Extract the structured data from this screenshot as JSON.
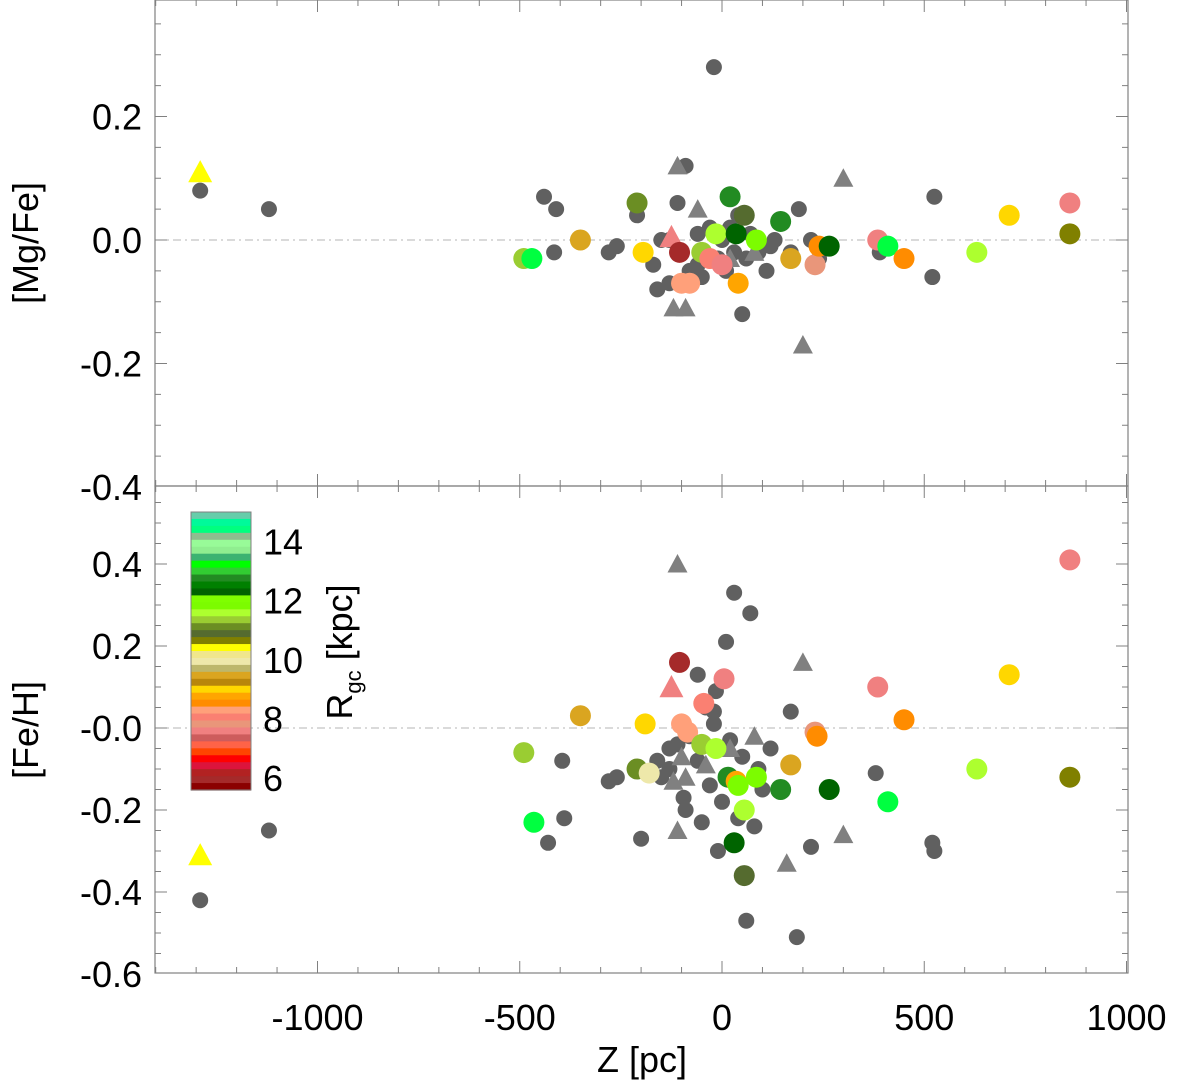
{
  "chart_data": [
    {
      "type": "scatter",
      "panel": "top",
      "ylabel": "[Mg/Fe]",
      "xlabel": "",
      "xlim": [
        -1400,
        1000
      ],
      "ylim": [
        -0.4,
        0.4
      ],
      "yticks": [
        0.2,
        0.0,
        -0.2,
        -0.4
      ],
      "ytick_labels": [
        "0.2",
        "0.0",
        "-0.2",
        "-0.4"
      ],
      "reference_line": 0.0,
      "gray_circles": [
        [
          -1290,
          0.08
        ],
        [
          -1120,
          0.05
        ],
        [
          -440,
          0.07
        ],
        [
          -410,
          0.05
        ],
        [
          -415,
          -0.02
        ],
        [
          -280,
          -0.02
        ],
        [
          -260,
          -0.01
        ],
        [
          -210,
          0.04
        ],
        [
          -170,
          -0.04
        ],
        [
          -150,
          0.0
        ],
        [
          -130,
          -0.07
        ],
        [
          -110,
          0.06
        ],
        [
          -100,
          -0.02
        ],
        [
          -90,
          0.12
        ],
        [
          -80,
          -0.05
        ],
        [
          -60,
          0.01
        ],
        [
          -50,
          -0.06
        ],
        [
          -40,
          -0.03
        ],
        [
          -30,
          0.02
        ],
        [
          -20,
          0.28
        ],
        [
          -10,
          -0.03
        ],
        [
          0,
          0.0
        ],
        [
          10,
          -0.05
        ],
        [
          20,
          0.02
        ],
        [
          30,
          -0.02
        ],
        [
          40,
          0.04
        ],
        [
          50,
          -0.12
        ],
        [
          60,
          -0.03
        ],
        [
          70,
          0.01
        ],
        [
          90,
          -0.02
        ],
        [
          110,
          -0.05
        ],
        [
          130,
          0.0
        ],
        [
          150,
          0.03
        ],
        [
          170,
          -0.02
        ],
        [
          190,
          0.05
        ],
        [
          220,
          0.0
        ],
        [
          240,
          -0.03
        ],
        [
          390,
          -0.02
        ],
        [
          520,
          -0.06
        ],
        [
          525,
          0.07
        ],
        [
          -160,
          -0.08
        ],
        [
          -60,
          -0.04
        ],
        [
          -130,
          0.0
        ],
        [
          120,
          -0.01
        ]
      ],
      "gray_triangles": [
        [
          -110,
          0.12
        ],
        [
          -60,
          0.05
        ],
        [
          -120,
          -0.11
        ],
        [
          -90,
          -0.11
        ],
        [
          200,
          -0.17
        ],
        [
          300,
          0.1
        ],
        [
          80,
          -0.02
        ],
        [
          20,
          -0.03
        ]
      ],
      "colored_points": [
        {
          "z": -1290,
          "v": 0.11,
          "color": "#ffff00",
          "shape": "triangle"
        },
        {
          "z": -125,
          "v": 0.005,
          "color": "#f08080",
          "shape": "triangle"
        },
        {
          "z": -490,
          "v": -0.03,
          "color": "#9acd32",
          "shape": "circle"
        },
        {
          "z": -470,
          "v": -0.03,
          "color": "#00ff40",
          "shape": "circle"
        },
        {
          "z": -350,
          "v": 0.0,
          "color": "#daa520",
          "shape": "circle"
        },
        {
          "z": -210,
          "v": 0.06,
          "color": "#6b8e23",
          "shape": "circle"
        },
        {
          "z": -195,
          "v": -0.02,
          "color": "#ffd700",
          "shape": "circle"
        },
        {
          "z": -105,
          "v": -0.02,
          "color": "#a52a2a",
          "shape": "circle"
        },
        {
          "z": -100,
          "v": -0.07,
          "color": "#ffa07a",
          "shape": "circle"
        },
        {
          "z": -80,
          "v": -0.07,
          "color": "#ffa07a",
          "shape": "circle"
        },
        {
          "z": -50,
          "v": -0.02,
          "color": "#9acd32",
          "shape": "circle"
        },
        {
          "z": -30,
          "v": -0.03,
          "color": "#fa8072",
          "shape": "circle"
        },
        {
          "z": -15,
          "v": 0.01,
          "color": "#adff2f",
          "shape": "circle"
        },
        {
          "z": 0,
          "v": -0.04,
          "color": "#f08080",
          "shape": "circle"
        },
        {
          "z": 20,
          "v": 0.07,
          "color": "#228b22",
          "shape": "circle"
        },
        {
          "z": 35,
          "v": 0.01,
          "color": "#006400",
          "shape": "circle"
        },
        {
          "z": 40,
          "v": -0.07,
          "color": "#ffa500",
          "shape": "circle"
        },
        {
          "z": 55,
          "v": 0.04,
          "color": "#556b2f",
          "shape": "circle"
        },
        {
          "z": 85,
          "v": 0.0,
          "color": "#7cfc00",
          "shape": "circle"
        },
        {
          "z": 145,
          "v": 0.03,
          "color": "#228b22",
          "shape": "circle"
        },
        {
          "z": 170,
          "v": -0.03,
          "color": "#daa520",
          "shape": "circle"
        },
        {
          "z": 230,
          "v": -0.04,
          "color": "#e9967a",
          "shape": "circle"
        },
        {
          "z": 240,
          "v": -0.01,
          "color": "#ff8c00",
          "shape": "circle"
        },
        {
          "z": 265,
          "v": -0.01,
          "color": "#006400",
          "shape": "circle"
        },
        {
          "z": 385,
          "v": 0.0,
          "color": "#f08080",
          "shape": "circle"
        },
        {
          "z": 410,
          "v": -0.01,
          "color": "#00ff40",
          "shape": "circle"
        },
        {
          "z": 450,
          "v": -0.03,
          "color": "#ff8c00",
          "shape": "circle"
        },
        {
          "z": 630,
          "v": -0.02,
          "color": "#adff2f",
          "shape": "circle"
        },
        {
          "z": 710,
          "v": 0.04,
          "color": "#ffd700",
          "shape": "circle"
        },
        {
          "z": 860,
          "v": 0.06,
          "color": "#f08080",
          "shape": "circle"
        },
        {
          "z": 860,
          "v": 0.01,
          "color": "#808000",
          "shape": "circle"
        }
      ]
    },
    {
      "type": "scatter",
      "panel": "bottom",
      "ylabel": "[Fe/H]",
      "xlabel": "Z [pc]",
      "xlim": [
        -1400,
        1000
      ],
      "ylim": [
        -0.65,
        0.55
      ],
      "yticks": [
        0.4,
        0.2,
        -0.0,
        -0.2,
        -0.4,
        -0.6
      ],
      "ytick_labels": [
        "0.4",
        "0.2",
        "-0.0",
        "-0.2",
        "-0.4",
        "-0.6"
      ],
      "xticks": [
        -1000,
        -500,
        0,
        500,
        1000
      ],
      "xtick_labels": [
        "-1000",
        "-500",
        "0",
        "500",
        "1000"
      ],
      "reference_line": 0.0,
      "gray_circles": [
        [
          -1290,
          -0.42
        ],
        [
          -1120,
          -0.25
        ],
        [
          -430,
          -0.28
        ],
        [
          -395,
          -0.08
        ],
        [
          -390,
          -0.22
        ],
        [
          -280,
          -0.13
        ],
        [
          -260,
          -0.12
        ],
        [
          -200,
          -0.27
        ],
        [
          -160,
          -0.08
        ],
        [
          -150,
          -0.12
        ],
        [
          -130,
          -0.1
        ],
        [
          -110,
          -0.04
        ],
        [
          -95,
          -0.17
        ],
        [
          -90,
          -0.2
        ],
        [
          -80,
          -0.02
        ],
        [
          -60,
          0.13
        ],
        [
          -50,
          -0.23
        ],
        [
          -40,
          0.05
        ],
        [
          -30,
          -0.14
        ],
        [
          -20,
          0.01
        ],
        [
          -15,
          0.09
        ],
        [
          -10,
          -0.3
        ],
        [
          0,
          -0.18
        ],
        [
          10,
          0.21
        ],
        [
          20,
          -0.03
        ],
        [
          30,
          0.33
        ],
        [
          40,
          -0.22
        ],
        [
          50,
          -0.07
        ],
        [
          60,
          -0.47
        ],
        [
          70,
          0.28
        ],
        [
          80,
          -0.24
        ],
        [
          90,
          -0.1
        ],
        [
          100,
          -0.15
        ],
        [
          170,
          0.04
        ],
        [
          185,
          -0.51
        ],
        [
          220,
          -0.29
        ],
        [
          380,
          -0.11
        ],
        [
          520,
          -0.28
        ],
        [
          525,
          -0.3
        ],
        [
          -20,
          0.04
        ],
        [
          -60,
          -0.08
        ],
        [
          -130,
          -0.05
        ],
        [
          120,
          -0.05
        ]
      ],
      "gray_triangles": [
        [
          -110,
          0.4
        ],
        [
          -110,
          -0.25
        ],
        [
          -120,
          -0.13
        ],
        [
          -90,
          -0.12
        ],
        [
          -40,
          -0.09
        ],
        [
          -100,
          -0.07
        ],
        [
          80,
          -0.02
        ],
        [
          160,
          -0.33
        ],
        [
          200,
          0.16
        ],
        [
          300,
          -0.26
        ],
        [
          20,
          -0.05
        ]
      ],
      "colored_points": [
        {
          "z": -1290,
          "v": -0.31,
          "color": "#ffff00",
          "shape": "triangle"
        },
        {
          "z": -125,
          "v": 0.1,
          "color": "#f08080",
          "shape": "triangle"
        },
        {
          "z": -490,
          "v": -0.06,
          "color": "#9acd32",
          "shape": "circle"
        },
        {
          "z": -465,
          "v": -0.23,
          "color": "#00ff40",
          "shape": "circle"
        },
        {
          "z": -350,
          "v": 0.03,
          "color": "#daa520",
          "shape": "circle"
        },
        {
          "z": -210,
          "v": -0.1,
          "color": "#6b8e23",
          "shape": "circle"
        },
        {
          "z": -190,
          "v": 0.01,
          "color": "#ffd700",
          "shape": "circle"
        },
        {
          "z": -180,
          "v": -0.11,
          "color": "#eee8aa",
          "shape": "circle"
        },
        {
          "z": -105,
          "v": 0.16,
          "color": "#a52a2a",
          "shape": "circle"
        },
        {
          "z": -100,
          "v": 0.01,
          "color": "#ffa07a",
          "shape": "circle"
        },
        {
          "z": -85,
          "v": -0.01,
          "color": "#ffa07a",
          "shape": "circle"
        },
        {
          "z": -50,
          "v": -0.04,
          "color": "#9acd32",
          "shape": "circle"
        },
        {
          "z": -45,
          "v": 0.06,
          "color": "#fa8072",
          "shape": "circle"
        },
        {
          "z": -15,
          "v": -0.05,
          "color": "#adff2f",
          "shape": "circle"
        },
        {
          "z": 5,
          "v": 0.12,
          "color": "#f08080",
          "shape": "circle"
        },
        {
          "z": 15,
          "v": -0.12,
          "color": "#228b22",
          "shape": "circle"
        },
        {
          "z": 30,
          "v": -0.28,
          "color": "#006400",
          "shape": "circle"
        },
        {
          "z": 35,
          "v": -0.13,
          "color": "#ffa500",
          "shape": "circle"
        },
        {
          "z": 40,
          "v": -0.14,
          "color": "#7cfc00",
          "shape": "circle"
        },
        {
          "z": 55,
          "v": -0.2,
          "color": "#adff2f",
          "shape": "circle"
        },
        {
          "z": 55,
          "v": -0.36,
          "color": "#556b2f",
          "shape": "circle"
        },
        {
          "z": 85,
          "v": -0.12,
          "color": "#7cfc00",
          "shape": "circle"
        },
        {
          "z": 145,
          "v": -0.15,
          "color": "#228b22",
          "shape": "circle"
        },
        {
          "z": 170,
          "v": -0.09,
          "color": "#daa520",
          "shape": "circle"
        },
        {
          "z": 230,
          "v": -0.01,
          "color": "#e9967a",
          "shape": "circle"
        },
        {
          "z": 235,
          "v": -0.02,
          "color": "#ff8c00",
          "shape": "circle"
        },
        {
          "z": 265,
          "v": -0.15,
          "color": "#006400",
          "shape": "circle"
        },
        {
          "z": 385,
          "v": 0.1,
          "color": "#f08080",
          "shape": "circle"
        },
        {
          "z": 410,
          "v": -0.18,
          "color": "#00ff40",
          "shape": "circle"
        },
        {
          "z": 450,
          "v": 0.02,
          "color": "#ff8c00",
          "shape": "circle"
        },
        {
          "z": 630,
          "v": -0.1,
          "color": "#adff2f",
          "shape": "circle"
        },
        {
          "z": 710,
          "v": 0.13,
          "color": "#ffd700",
          "shape": "circle"
        },
        {
          "z": 860,
          "v": 0.41,
          "color": "#f08080",
          "shape": "circle"
        },
        {
          "z": 860,
          "v": -0.12,
          "color": "#808000",
          "shape": "circle"
        }
      ]
    }
  ],
  "colorbar": {
    "label_main": "R",
    "label_sub": "gc",
    "label_unit": " [kpc]",
    "range": [
      5.6,
      15.0
    ],
    "tick_values": [
      14,
      12,
      10,
      8,
      6
    ],
    "tick_labels": [
      "14",
      "12",
      "10",
      "8",
      "6"
    ],
    "colors_top_to_bottom": [
      "#66cdaa",
      "#00fa9a",
      "#00ff7f",
      "#8fbc8f",
      "#98fb98",
      "#90ee90",
      "#3cb371",
      "#00ff00",
      "#32cd32",
      "#228b22",
      "#008000",
      "#006400",
      "#7fff00",
      "#7cfc00",
      "#adff2f",
      "#9acd32",
      "#6b8e23",
      "#556b2f",
      "#808000",
      "#ffff00",
      "#f0e68c",
      "#eee8aa",
      "#bdb76b",
      "#daa520",
      "#b8860b",
      "#ffd700",
      "#ffa500",
      "#ff8c00",
      "#ffa07a",
      "#fa8072",
      "#e9967a",
      "#f08080",
      "#cd5c5c",
      "#ff6347",
      "#ff4500",
      "#ff0000",
      "#dc143c",
      "#b22222",
      "#a52a2a",
      "#8b0000"
    ]
  }
}
